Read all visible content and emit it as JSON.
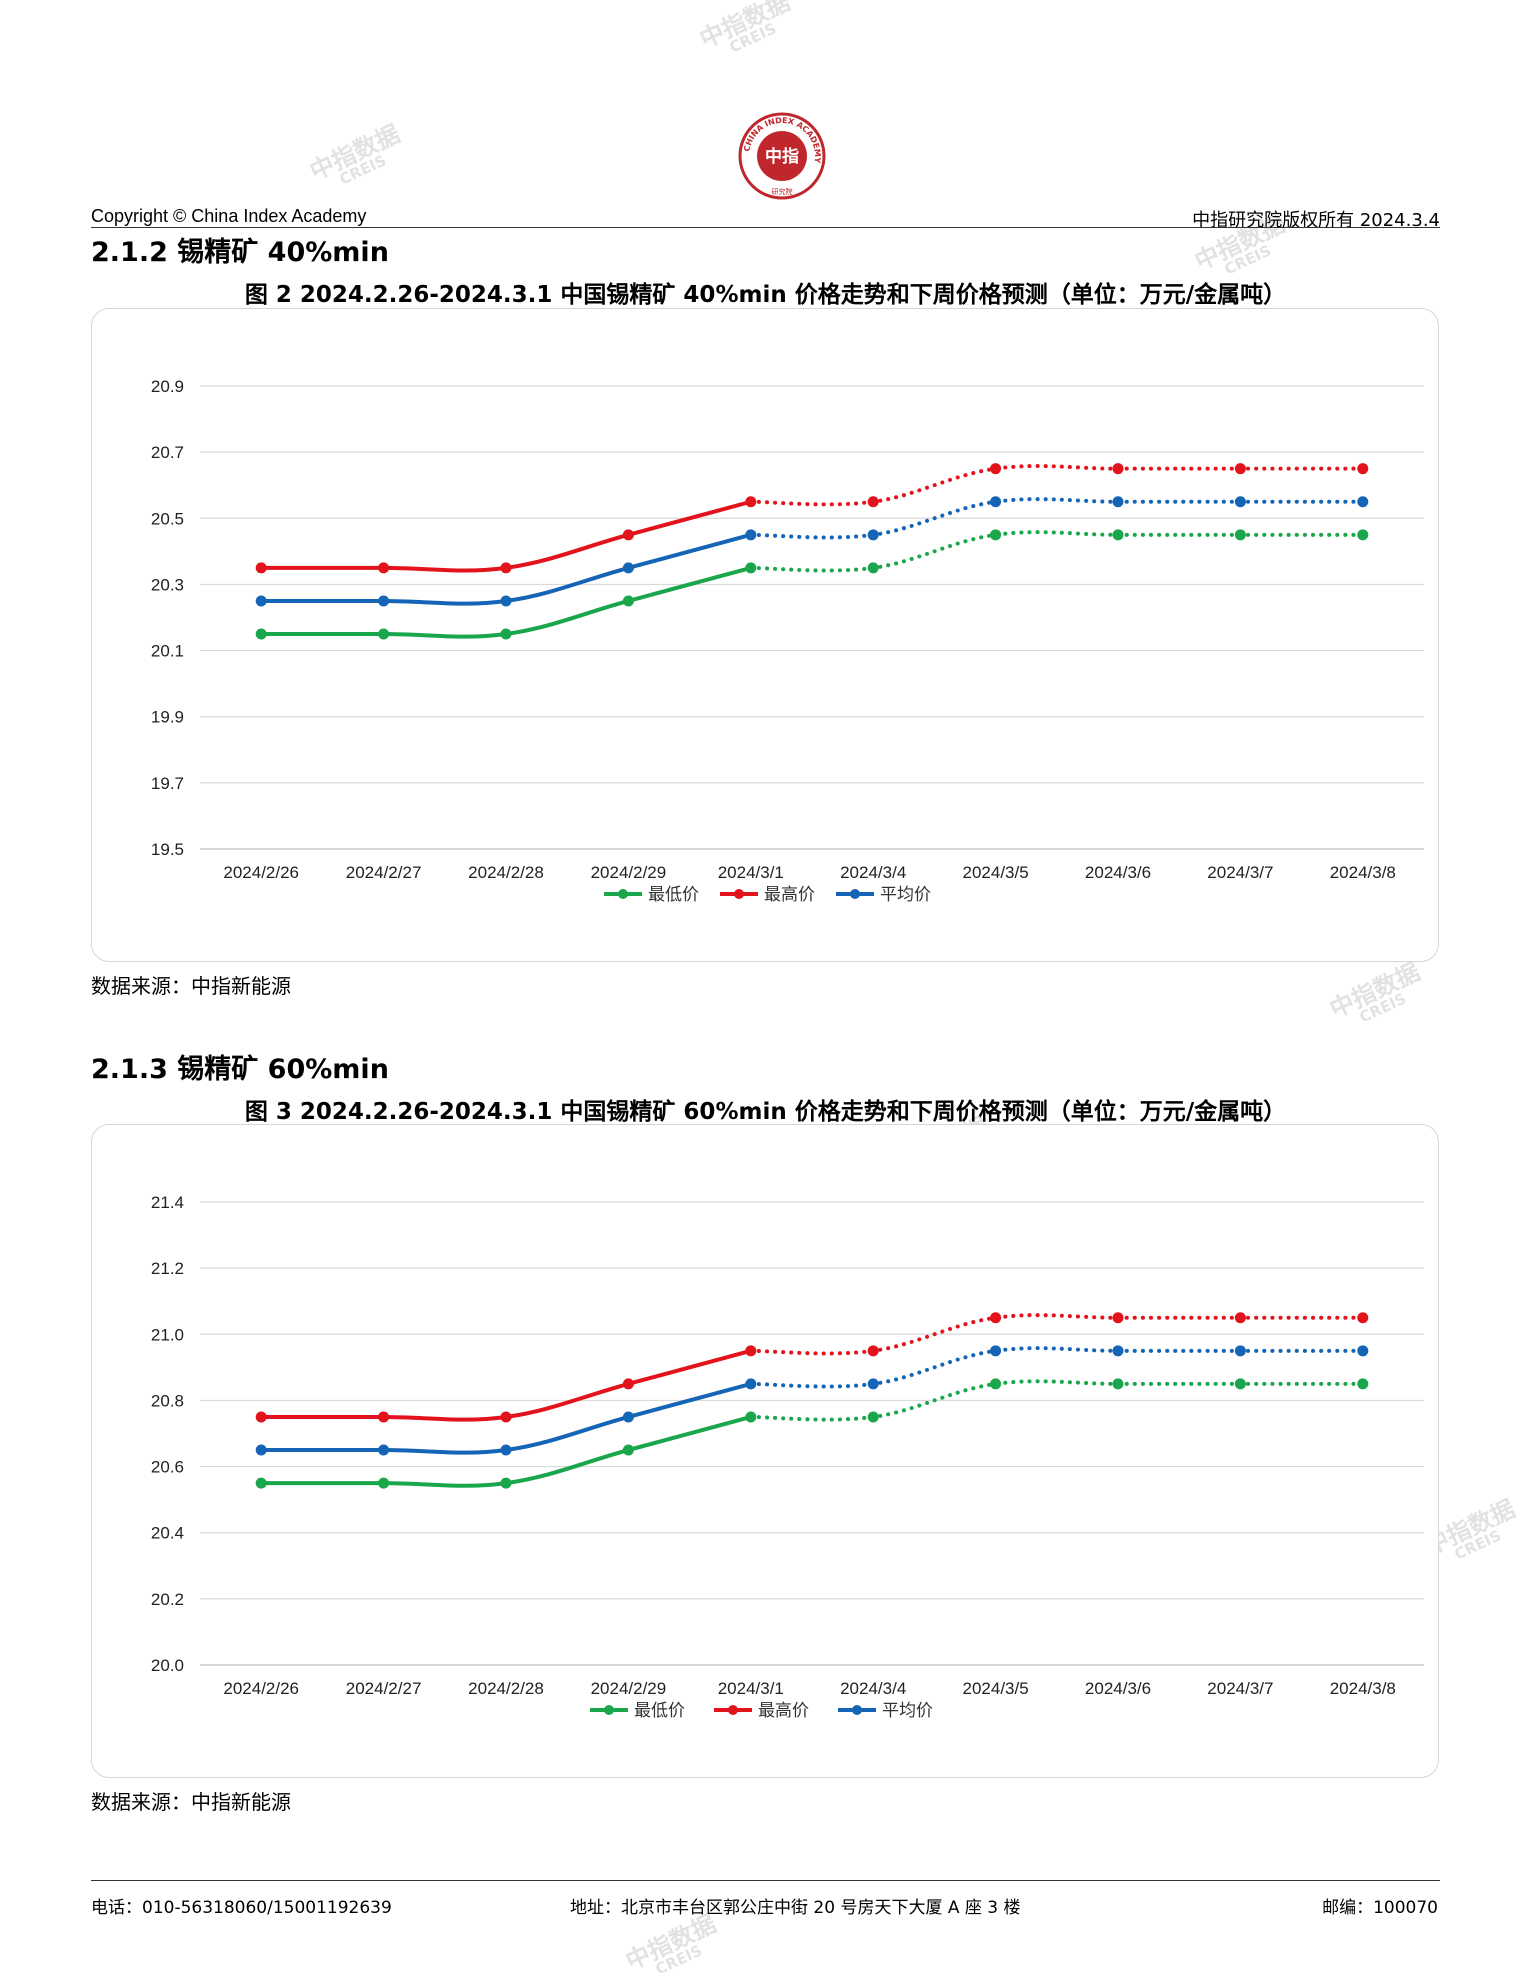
{
  "header": {
    "copyright": "Copyright © China Index Academy",
    "rights": "中指研究院版权所有 2024.3.4",
    "logo": {
      "center_text": "中指",
      "ring_text": "CHINA INDEX ACADEMY",
      "bottom_text": "研究院",
      "color": "#c0272d"
    }
  },
  "watermark": {
    "line1": "中指数据",
    "line2": "CREIS"
  },
  "sections": [
    {
      "heading": "2.1.2 锡精矿 40%min",
      "figure_title": "图 2 2024.2.26-2024.3.1 中国锡精矿 40%min 价格走势和下周价格预测（单位：万元/金属吨）",
      "source": "数据来源：中指新能源"
    },
    {
      "heading": "2.1.3 锡精矿 60%min",
      "figure_title": "图 3 2024.2.26-2024.3.1 中国锡精矿 60%min 价格走势和下周价格预测（单位：万元/金属吨）",
      "source": "数据来源：中指新能源"
    }
  ],
  "chart_data": [
    {
      "type": "line",
      "categories": [
        "2024/2/26",
        "2024/2/27",
        "2024/2/28",
        "2024/2/29",
        "2024/3/1",
        "2024/3/4",
        "2024/3/5",
        "2024/3/6",
        "2024/3/7",
        "2024/3/8"
      ],
      "actual_count": 5,
      "forecast_style": "dotted",
      "ylim": [
        19.5,
        20.9
      ],
      "yticks": [
        "20.9",
        "20.7",
        "20.5",
        "20.3",
        "20.1",
        "19.9",
        "19.7",
        "19.5"
      ],
      "grid": true,
      "legend_position": "bottom",
      "series": [
        {
          "name": "最低价",
          "color": "#1aa64a",
          "values": [
            20.15,
            20.15,
            20.15,
            20.25,
            20.35,
            20.35,
            20.45,
            20.45,
            20.45,
            20.45
          ]
        },
        {
          "name": "最高价",
          "color": "#e3131b",
          "values": [
            20.35,
            20.35,
            20.35,
            20.45,
            20.55,
            20.55,
            20.65,
            20.65,
            20.65,
            20.65
          ]
        },
        {
          "name": "平均价",
          "color": "#1565b6",
          "values": [
            20.25,
            20.25,
            20.25,
            20.35,
            20.45,
            20.45,
            20.55,
            20.55,
            20.55,
            20.55
          ]
        }
      ]
    },
    {
      "type": "line",
      "categories": [
        "2024/2/26",
        "2024/2/27",
        "2024/2/28",
        "2024/2/29",
        "2024/3/1",
        "2024/3/4",
        "2024/3/5",
        "2024/3/6",
        "2024/3/7",
        "2024/3/8"
      ],
      "actual_count": 5,
      "forecast_style": "dotted",
      "ylim": [
        20.0,
        21.4
      ],
      "yticks": [
        "21.4",
        "21.2",
        "21.0",
        "20.8",
        "20.6",
        "20.4",
        "20.2",
        "20.0"
      ],
      "grid": true,
      "legend_position": "bottom",
      "series": [
        {
          "name": "最低价",
          "color": "#1aa64a",
          "values": [
            20.55,
            20.55,
            20.55,
            20.65,
            20.75,
            20.75,
            20.85,
            20.85,
            20.85,
            20.85
          ]
        },
        {
          "name": "最高价",
          "color": "#e3131b",
          "values": [
            20.75,
            20.75,
            20.75,
            20.85,
            20.95,
            20.95,
            21.05,
            21.05,
            21.05,
            21.05
          ]
        },
        {
          "name": "平均价",
          "color": "#1565b6",
          "values": [
            20.65,
            20.65,
            20.65,
            20.75,
            20.85,
            20.85,
            20.95,
            20.95,
            20.95,
            20.95
          ]
        }
      ]
    }
  ],
  "footer": {
    "phone": "电话：010-56318060/15001192639",
    "address": "地址：北京市丰台区郭公庄中街 20 号房天下大厦 A 座 3 楼",
    "postcode": "邮编：100070"
  }
}
